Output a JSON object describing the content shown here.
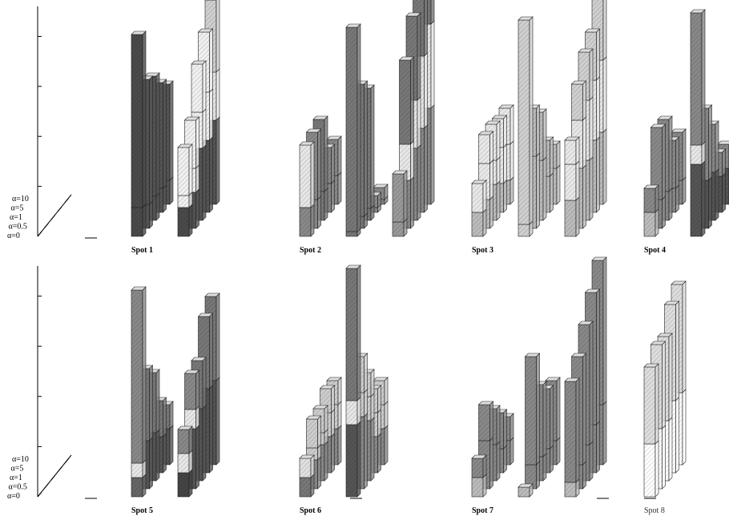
{
  "chart_data": {
    "type": "bar",
    "subtype": "3d-stacked-bar-panels",
    "depth_labels": [
      "α=0",
      "α=0.5",
      "α=1",
      "α=5",
      "α=10"
    ],
    "ylim": [
      0,
      1
    ],
    "panels": [
      {
        "label": "Spot 1",
        "bold": true,
        "groups": [
          {
            "stacks": [
              [
                0.12,
                0.72,
                "#4a4a4a",
                "#4a4a4a"
              ],
              [
                0.1,
                0.52,
                "#555",
                "#555"
              ],
              [
                0.1,
                0.5,
                "#555",
                "#555"
              ],
              [
                0.1,
                0.44,
                "#555",
                "#555"
              ],
              [
                0.1,
                0.4,
                "#555",
                "#555"
              ]
            ]
          },
          {
            "stacks": [
              [
                0.12,
                0.2,
                "#4a4a4a",
                "#f0f0f0",
                0.05
              ],
              [
                0.15,
                0.2,
                "#555",
                "#f0f0f0",
                0.1
              ],
              [
                0.3,
                0.2,
                "#555",
                "#f0f0f0",
                0.15
              ],
              [
                0.3,
                0.25,
                "#555",
                "#f0f0f0",
                0.2
              ],
              [
                0.35,
                0.3,
                "#555",
                "#cfcfcf",
                0.2
              ]
            ]
          }
        ]
      },
      {
        "label": "Spot 2",
        "bold": true,
        "groups": [
          {
            "stacks": [
              [
                0.12,
                0.0,
                "#888",
                "#888",
                0.26
              ],
              [
                0.12,
                0.28,
                "#888",
                "#888"
              ],
              [
                0.12,
                0.3,
                "#777",
                "#777"
              ],
              [
                0.12,
                0.15,
                "#888",
                "#888"
              ],
              [
                0.12,
                0.15,
                "#888",
                "#888"
              ]
            ]
          },
          {
            "stacks": [
              [
                0.02,
                0.85,
                "#777",
                "#777"
              ],
              [
                0.05,
                0.55,
                "#777",
                "#777"
              ],
              [
                0.05,
                0.5,
                "#777",
                "#777"
              ],
              [
                0.02,
                0.05,
                "#888",
                "#888"
              ],
              [
                0.02,
                0.05,
                "#888",
                "#888"
              ]
            ]
          },
          {
            "stacks": [
              [
                0.06,
                0.2,
                "#999",
                "#999"
              ],
              [
                0.2,
                0.35,
                "#888",
                "#777",
                0.15
              ],
              [
                0.3,
                0.35,
                "#888",
                "#777",
                0.2
              ],
              [
                0.35,
                0.35,
                "#888",
                "#777",
                0.3
              ],
              [
                0.4,
                0.4,
                "#888",
                "#777",
                0.35
              ]
            ]
          }
        ]
      },
      {
        "label": "Spot 3",
        "bold": true,
        "groups": [
          {
            "stacks": [
              [
                0.1,
                0.12,
                "#bbb",
                "#e8e8e8",
                0.0
              ],
              [
                0.12,
                0.12,
                "#bbb",
                "#e8e8e8",
                0.15
              ],
              [
                0.15,
                0.15,
                "#bbb",
                "#e8e8e8",
                0.1
              ],
              [
                0.12,
                0.12,
                "#bbb",
                "#e8e8e8",
                0.15
              ],
              [
                0.1,
                0.15,
                "#bbb",
                "#e8e8e8",
                0.15
              ]
            ]
          },
          {
            "stacks": [
              [
                0.05,
                0.85,
                "#cfcfcf",
                "#cfcfcf"
              ],
              [
                0.3,
                0.2,
                "#bbb",
                "#bbb"
              ],
              [
                0.25,
                0.2,
                "#bbb",
                "#bbb"
              ],
              [
                0.15,
                0.15,
                "#bbb",
                "#bbb"
              ],
              [
                0.15,
                0.1,
                "#bbb",
                "#bbb"
              ]
            ]
          },
          {
            "stacks": [
              [
                0.15,
                0.1,
                "#bbb",
                "#e8e8e8",
                0.15
              ],
              [
                0.25,
                0.15,
                "#bbb",
                "#cfcfcf",
                0.2
              ],
              [
                0.25,
                0.2,
                "#bbb",
                "#cfcfcf",
                0.25
              ],
              [
                0.3,
                0.2,
                "#bbb",
                "#cfcfcf",
                0.25
              ],
              [
                0.3,
                0.3,
                "#bbb",
                "#cfcfcf",
                0.3
              ]
            ]
          }
        ]
      },
      {
        "label": "Spot 4",
        "bold": true,
        "groups": [
          {
            "stacks": [
              [
                0.1,
                0.1,
                "#bbb",
                "#888"
              ],
              [
                0.12,
                0.3,
                "#888",
                "#888"
              ],
              [
                0.12,
                0.3,
                "#888",
                "#888"
              ],
              [
                0.1,
                0.2,
                "#888",
                "#888"
              ],
              [
                0.1,
                0.2,
                "#888",
                "#888"
              ]
            ]
          },
          {
            "stacks": [
              [
                0.3,
                0.55,
                "#555",
                "#888",
                0.08
              ],
              [
                0.2,
                0.3,
                "#555",
                "#888"
              ],
              [
                0.2,
                0.2,
                "#555",
                "#888"
              ],
              [
                0.15,
                0.1,
                "#555",
                "#888"
              ],
              [
                0.15,
                0.1,
                "#555",
                "#888"
              ]
            ]
          },
          {
            "stacks": [
              [
                0.3,
                0.05,
                "#555",
                "#444"
              ],
              [
                0.3,
                0.2,
                "#444",
                "#444"
              ],
              [
                0.3,
                0.35,
                "#444",
                "#444"
              ],
              [
                0.35,
                0.4,
                "#444",
                "#444"
              ],
              [
                0.4,
                0.5,
                "#444",
                "#444"
              ]
            ]
          }
        ]
      },
      {
        "label": "Spot 5",
        "bold": true,
        "groups": [
          {
            "stacks": [
              [
                0.08,
                0.72,
                "#666",
                "#888",
                0.06
              ],
              [
                0.2,
                0.3,
                "#555",
                "#777"
              ],
              [
                0.2,
                0.25,
                "#555",
                "#777"
              ],
              [
                0.15,
                0.15,
                "#555",
                "#777"
              ],
              [
                0.15,
                0.1,
                "#555",
                "#777"
              ]
            ]
          },
          {
            "stacks": [
              [
                0.1,
                0.1,
                "#444",
                "#888",
                0.08
              ],
              [
                0.25,
                0.15,
                "#555",
                "#888",
                0.08
              ],
              [
                0.3,
                0.2,
                "#555",
                "#777"
              ],
              [
                0.35,
                0.3,
                "#555",
                "#777"
              ],
              [
                0.35,
                0.35,
                "#555",
                "#777"
              ]
            ]
          }
        ]
      },
      {
        "label": "Spot 6",
        "bold": true,
        "groups": [
          {
            "stacks": [
              [
                0.08,
                0.08,
                "#777",
                "#e0e0e0"
              ],
              [
                0.12,
                0.12,
                "#888",
                "#ccc",
                0.05
              ],
              [
                0.15,
                0.1,
                "#888",
                "#ccc",
                0.05
              ],
              [
                0.15,
                0.1,
                "#888",
                "#ccc",
                0.1
              ],
              [
                0.15,
                0.1,
                "#888",
                "#ccc",
                0.1
              ]
            ]
          },
          {
            "stacks": [
              [
                0.3,
                0.55,
                "#555",
                "#777",
                0.1
              ],
              [
                0.3,
                0.15,
                "#888",
                "#ccc",
                0.1
              ],
              [
                0.25,
                0.1,
                "#888",
                "#ccc",
                0.1
              ],
              [
                0.15,
                0.1,
                "#888",
                "#ccc",
                0.1
              ],
              [
                0.15,
                0.1,
                "#888",
                "#ccc",
                0.1
              ]
            ]
          }
        ]
      },
      {
        "label": "Spot 7",
        "bold": true,
        "groups": [
          {
            "stacks": [
              [
                0.08,
                0.08,
                "#bbb",
                "#888"
              ],
              [
                0.2,
                0.15,
                "#888",
                "#888"
              ],
              [
                0.15,
                0.15,
                "#888",
                "#888"
              ],
              [
                0.1,
                0.15,
                "#888",
                "#888"
              ],
              [
                0.1,
                0.1,
                "#888",
                "#888"
              ]
            ]
          },
          {
            "stacks": [
              [
                0.04,
                0.0,
                "#bbb",
                "#bbb"
              ],
              [
                0.1,
                0.45,
                "#888",
                "#888"
              ],
              [
                0.1,
                0.3,
                "#888",
                "#888"
              ],
              [
                0.1,
                0.25,
                "#888",
                "#888"
              ],
              [
                0.1,
                0.25,
                "#888",
                "#888"
              ]
            ]
          },
          {
            "stacks": [
              [
                0.06,
                0.42,
                "#bbb",
                "#888"
              ],
              [
                0.1,
                0.45,
                "#888",
                "#888"
              ],
              [
                0.15,
                0.5,
                "#888",
                "#888"
              ],
              [
                0.2,
                0.55,
                "#888",
                "#888"
              ],
              [
                0.25,
                0.6,
                "#888",
                "#888"
              ]
            ]
          }
        ]
      },
      {
        "label": "Spot 8",
        "bold": false,
        "groups": [
          {
            "stacks": [
              [
                0.22,
                0.32,
                "#fff",
                "#ddd"
              ],
              [
                0.25,
                0.35,
                "#fff",
                "#ddd"
              ],
              [
                0.25,
                0.35,
                "#fff",
                "#ddd"
              ],
              [
                0.3,
                0.4,
                "#fff",
                "#ddd"
              ],
              [
                0.3,
                0.45,
                "#fff",
                "#ddd"
              ]
            ]
          }
        ]
      }
    ]
  }
}
